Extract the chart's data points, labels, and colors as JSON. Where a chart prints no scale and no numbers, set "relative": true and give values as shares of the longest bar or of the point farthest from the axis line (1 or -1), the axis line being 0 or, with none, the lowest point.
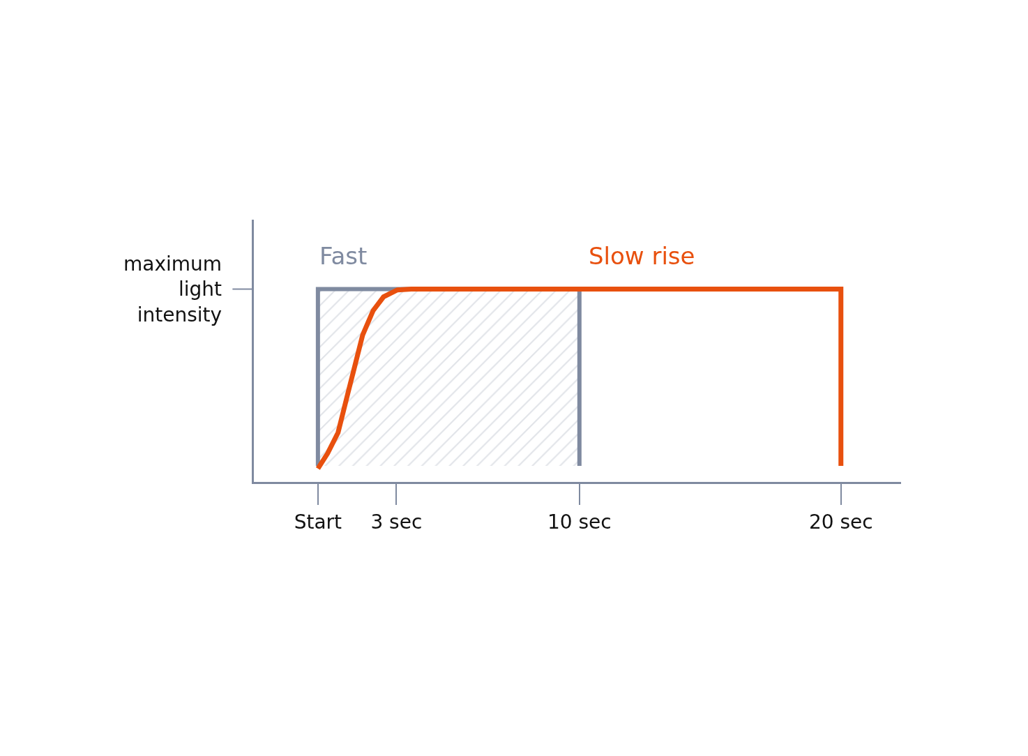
{
  "chart_data": {
    "type": "line",
    "relative": true,
    "ylabel": "maximum light intensity",
    "xlim": [
      -2.45,
      22.3
    ],
    "xticks": [
      {
        "value": 0,
        "label": "Start"
      },
      {
        "value": 3,
        "label": "3 sec"
      },
      {
        "value": 10,
        "label": "10 sec"
      },
      {
        "value": 20,
        "label": "20 sec"
      }
    ],
    "legend": false,
    "series": [
      {
        "name": "Fast",
        "type": "area",
        "color": "#7f8aa0",
        "x": [
          0,
          0,
          10,
          10
        ],
        "values": [
          0.083,
          1,
          1,
          0.083
        ]
      },
      {
        "name": "Slow rise",
        "color": "#e8500e",
        "x": [
          0,
          0.37,
          0.77,
          1.17,
          1.44,
          1.71,
          2.11,
          2.51,
          3.04,
          3.57,
          20,
          20
        ],
        "values": [
          0.069,
          0.148,
          0.256,
          0.473,
          0.617,
          0.762,
          0.888,
          0.96,
          0.996,
          1,
          1,
          0.083
        ]
      }
    ]
  }
}
